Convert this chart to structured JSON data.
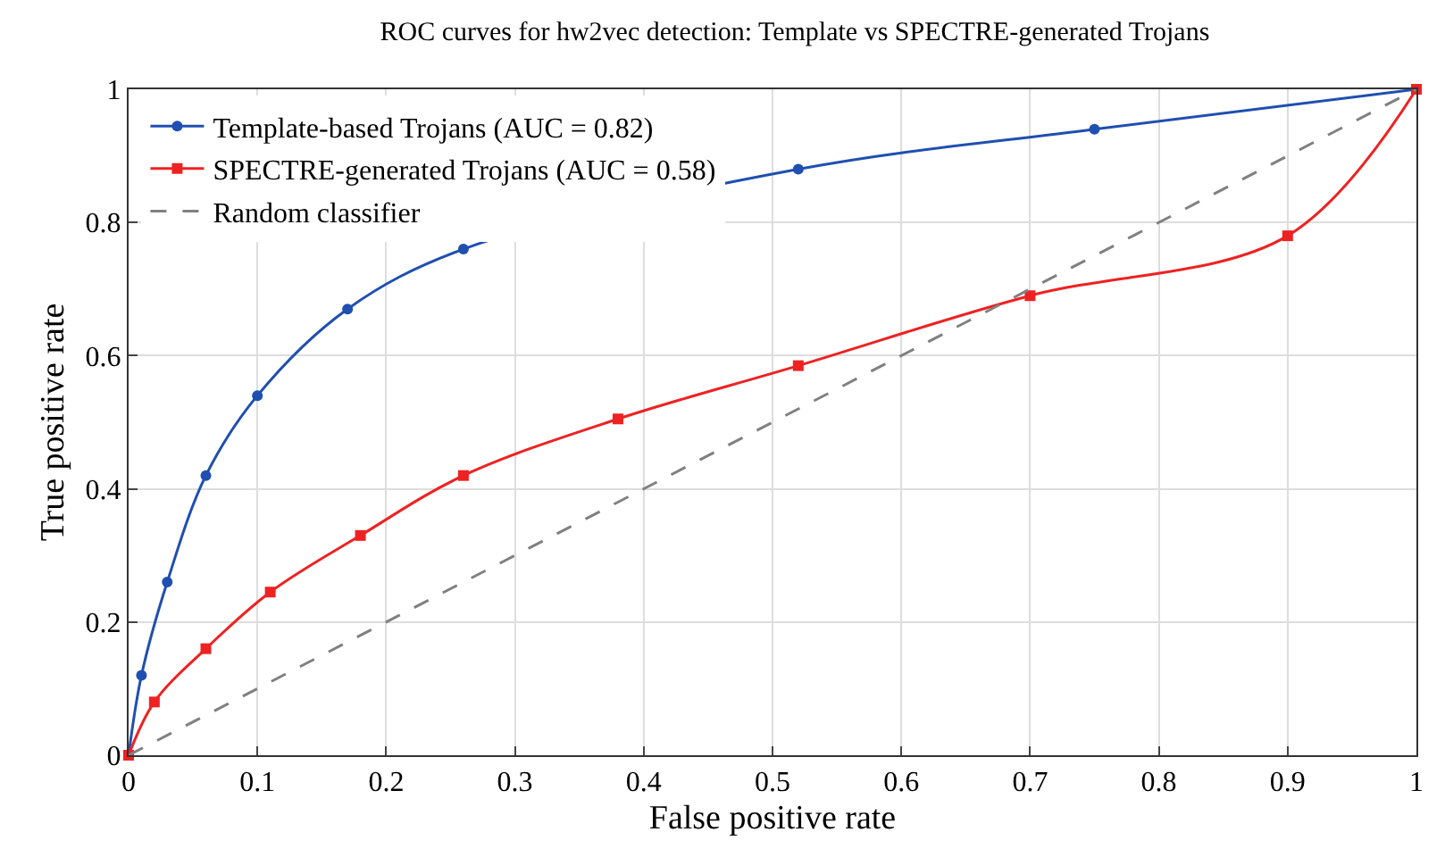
{
  "chart_data": {
    "type": "line",
    "title": "ROC curves for hw2vec detection: Template vs SPECTRE-generated Trojans",
    "xlabel": "False positive rate",
    "ylabel": "True positive rate",
    "series": [
      {
        "name": "Template-based Trojans (AUC = 0.82)",
        "color": "#1f4fb0",
        "marker": "circle",
        "line_style": "solid",
        "x": [
          0,
          0.01,
          0.03,
          0.06,
          0.1,
          0.17,
          0.26,
          0.52,
          0.75,
          1
        ],
        "values": [
          0,
          0.12,
          0.26,
          0.42,
          0.54,
          0.67,
          0.76,
          0.88,
          0.94,
          1
        ]
      },
      {
        "name": "SPECTRE-generated Trojans (AUC = 0.58)",
        "color": "#ee2222",
        "marker": "square",
        "line_style": "solid",
        "x": [
          0,
          0.02,
          0.06,
          0.11,
          0.18,
          0.26,
          0.38,
          0.52,
          0.7,
          0.9,
          1
        ],
        "values": [
          0,
          0.08,
          0.16,
          0.245,
          0.33,
          0.42,
          0.505,
          0.585,
          0.69,
          0.78,
          1
        ]
      },
      {
        "name": "Random classifier",
        "color": "#808080",
        "marker": "none",
        "line_style": "dashed",
        "x": [
          0,
          1
        ],
        "values": [
          0,
          1
        ]
      }
    ],
    "xlim": [
      0,
      1
    ],
    "ylim": [
      0,
      1
    ],
    "xticks": [
      0,
      0.1,
      0.2,
      0.3,
      0.4,
      0.5,
      0.6,
      0.7,
      0.8,
      0.9,
      1
    ],
    "yticks": [
      0,
      0.2,
      0.4,
      0.6,
      0.8,
      1
    ],
    "grid": true,
    "legend": "top left"
  }
}
